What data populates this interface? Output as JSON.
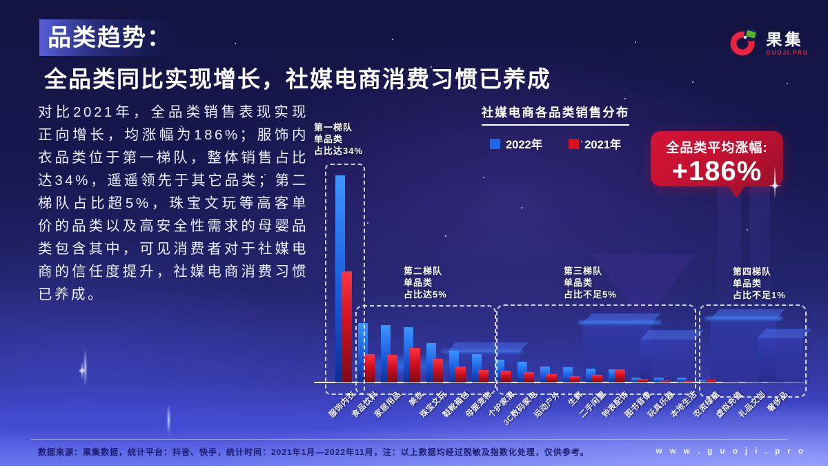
{
  "page": {
    "title_tag": "品类趋势：",
    "subtitle": "全品类同比实现增长，社媒电商消费习惯已养成",
    "paragraph": "对比2021年，全品类销售表现实现正向增长，均涨幅为186%；服饰内衣品类位于第一梯队，整体销售占比达34%，遥遥领先于其它品类；第二梯队占比超5%，珠宝文玩等高客单价的品类以及高安全性需求的母婴品类包含其中，可见消费者对于社媒电商的信任度提升，社媒电商消费习惯已养成。",
    "logo": {
      "name": "果集",
      "sub": "GUOJI.PRO"
    },
    "footer": {
      "note": "数据来源：果集数据，统计平台：抖音、快手，统计时间：2021年1月—2022年11月，注：以上数据均经过脱敏及指数化处理，仅供参考。",
      "website": "w w w . g u o j i . p r o"
    }
  },
  "badge": {
    "label": "全品类平均涨幅:",
    "value": "+186%",
    "color": "#c11030"
  },
  "tiers": [
    {
      "lines": [
        "第一梯队",
        "单品类",
        "占比达34%"
      ]
    },
    {
      "lines": [
        "第二梯队",
        "单品类",
        "占比达5%"
      ]
    },
    {
      "lines": [
        "第三梯队",
        "单品类",
        "占比不足5%"
      ]
    },
    {
      "lines": [
        "第四梯队",
        "单品类",
        "占比不足1%"
      ]
    }
  ],
  "chart_data": {
    "type": "bar",
    "title": "社媒电商各品类销售分布",
    "legend": [
      {
        "label": "2022年",
        "color": "#1e68e6"
      },
      {
        "label": "2021年",
        "color": "#d50f1e"
      }
    ],
    "legend_position": "top",
    "grid": false,
    "unit": "销售占比%（估算）",
    "ylim": [
      0,
      36
    ],
    "categories": [
      "服饰内衣",
      "食品饮料",
      "家居用品",
      "美妆",
      "珠宝文玩",
      "鞋靴箱包",
      "母婴宠物",
      "个护家清",
      "3C数码家电",
      "运动户外",
      "生鲜",
      "二手闲置",
      "钟表配饰",
      "图书音像",
      "玩具乐器",
      "本地生活",
      "农资绿植",
      "虚拟充值",
      "礼品文创",
      "奢侈品"
    ],
    "series": [
      {
        "name": "2022年",
        "color": "#1e68e6",
        "values": [
          34,
          9.8,
          9.4,
          9.1,
          6.5,
          5.2,
          4.7,
          3.7,
          3.4,
          2.6,
          2.5,
          2.3,
          2.1,
          0.8,
          0.8,
          0.8,
          0.5,
          0.15,
          0.12,
          0.1
        ]
      },
      {
        "name": "2021年",
        "color": "#d50f1e",
        "values": [
          18.2,
          4.7,
          4.5,
          5.7,
          3.8,
          2.6,
          2.0,
          1.9,
          1.7,
          1.4,
          1.0,
          1.2,
          2.2,
          0.6,
          0.3,
          0.2,
          0.5,
          0.1,
          0.05,
          0.03
        ]
      }
    ],
    "annotations": [
      "第一梯队 单品类 占比达34%",
      "第二梯队 单品类 占比达5%",
      "第三梯队 单品类 占比不足5%",
      "第四梯队 单品类 占比不足1%"
    ]
  }
}
